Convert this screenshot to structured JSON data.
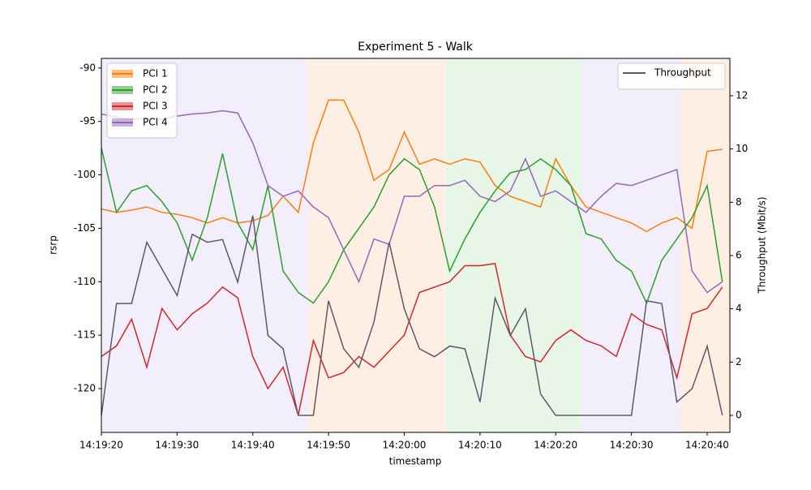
{
  "chart_data": {
    "type": "line",
    "title": "Experiment 5 - Walk",
    "x_label": "timestamp",
    "y_label": "rsrp",
    "y2_label": "Throughput (Mbit/s)",
    "x": [
      "14:19:20",
      "14:19:22",
      "14:19:24",
      "14:19:26",
      "14:19:28",
      "14:19:30",
      "14:19:32",
      "14:19:34",
      "14:19:36",
      "14:19:38",
      "14:19:40",
      "14:19:42",
      "14:19:44",
      "14:19:46",
      "14:19:48",
      "14:19:50",
      "14:19:52",
      "14:19:54",
      "14:19:56",
      "14:19:58",
      "14:20:00",
      "14:20:02",
      "14:20:04",
      "14:20:06",
      "14:20:08",
      "14:20:10",
      "14:20:12",
      "14:20:14",
      "14:20:16",
      "14:20:18",
      "14:20:20",
      "14:20:22",
      "14:20:24",
      "14:20:26",
      "14:20:28",
      "14:20:30",
      "14:20:32",
      "14:20:34",
      "14:20:36",
      "14:20:38",
      "14:20:40",
      "14:20:42"
    ],
    "xlim": [
      "14:19:20",
      "14:20:43"
    ],
    "xticks": [
      "14:19:20",
      "14:19:30",
      "14:19:40",
      "14:19:50",
      "14:20:00",
      "14:20:10",
      "14:20:20",
      "14:20:30",
      "14:20:40"
    ],
    "ylim": [
      -124.1,
      -89.1
    ],
    "yticks": [
      -90,
      -95,
      -100,
      -105,
      -110,
      -115,
      -120
    ],
    "y2lim": [
      -0.64,
      13.4
    ],
    "y2ticks": [
      0,
      2,
      4,
      6,
      8,
      10,
      12
    ],
    "regions": [
      {
        "start": "14:19:20",
        "end": "14:19:47.3",
        "color": "#f2eefb"
      },
      {
        "start": "14:19:47.3",
        "end": "14:20:05.4",
        "color": "#fdefe3"
      },
      {
        "start": "14:20:05.4",
        "end": "14:20:23.4",
        "color": "#e7f6e7"
      },
      {
        "start": "14:20:23.4",
        "end": "14:20:36.5",
        "color": "#f2eefb"
      },
      {
        "start": "14:20:36.5",
        "end": "14:20:43",
        "color": "#fdefe3"
      }
    ],
    "series": [
      {
        "name": "PCI 1",
        "color": "#ff7f0e",
        "values": [
          -103.2,
          -103.5,
          -103.3,
          -103,
          -103.5,
          -103.7,
          -104,
          -104.5,
          -104,
          -104.5,
          -104.3,
          -103.8,
          -102,
          -103.5,
          -97,
          -93,
          -93,
          -96,
          -100.5,
          -99.5,
          -96,
          -99,
          -98.5,
          -99,
          -98.5,
          -98.8,
          -101,
          -102,
          -102.5,
          -103,
          -98.5,
          -101,
          -103,
          -103.5,
          -104,
          -104.5,
          -105.3,
          -104.5,
          -104,
          -105,
          -97.8,
          -97.6
        ]
      },
      {
        "name": "PCI 2",
        "color": "#2ca02c",
        "values": [
          -97.5,
          -103.5,
          -101.5,
          -101,
          -102.5,
          -104.5,
          -108,
          -104,
          -98,
          -104.5,
          -107,
          -101,
          -109,
          -111,
          -112,
          -110,
          -107,
          -105,
          -103,
          -100,
          -98.5,
          -99.5,
          -103,
          -109,
          -106,
          -103.5,
          -101.5,
          -99.8,
          -99.5,
          -98.5,
          -99.5,
          -101,
          -105.5,
          -106,
          -108,
          -109,
          -112,
          -108,
          -106,
          -104,
          -101,
          -110
        ]
      },
      {
        "name": "PCI 3",
        "color": "#d62728",
        "values": [
          -117,
          -116,
          -113.5,
          -118,
          -112.5,
          -114.5,
          -113,
          -112,
          -110.5,
          -111.5,
          -117,
          -120,
          -118,
          -122.5,
          -115.5,
          -119,
          -118.5,
          -117,
          -118,
          -116.5,
          -115,
          -111,
          -110.5,
          -110,
          -108.5,
          -108.5,
          -108.3,
          -115,
          -117,
          -117.5,
          -115.5,
          -114.5,
          -115.5,
          -116,
          -117,
          -113,
          -114,
          -114.5,
          -119,
          -113,
          -112.5,
          -110.5
        ]
      },
      {
        "name": "PCI 4",
        "color": "#9467bd",
        "values": [
          -94.3,
          -94.6,
          -94.8,
          -94.7,
          -94.8,
          -94.5,
          -94.3,
          -94.2,
          -94,
          -94.2,
          -97,
          -101,
          -102,
          -101.5,
          -103,
          -104,
          -107,
          -110,
          -106,
          -106.5,
          -102,
          -102,
          -101,
          -101,
          -100.5,
          -102,
          -102.5,
          -101.5,
          -98.5,
          -102,
          -101.5,
          -102.5,
          -103.5,
          -102,
          -100.8,
          -101,
          -100.5,
          -100,
          -99.5,
          -109,
          -111,
          -110
        ]
      },
      {
        "name": "Throughput",
        "color": "#5f5866",
        "axis": "y2",
        "values": [
          0,
          4.2,
          4.2,
          6.5,
          5.5,
          4.5,
          6.8,
          6.5,
          6.6,
          5,
          7.5,
          3,
          2.5,
          0,
          0,
          4.3,
          2.5,
          1.8,
          3.5,
          6.5,
          4,
          2.5,
          2.2,
          2.6,
          2.5,
          0.5,
          4.4,
          3,
          4,
          0.8,
          0,
          0,
          0,
          0,
          0,
          0,
          4.3,
          4.2,
          0.5,
          1,
          2.6,
          0
        ]
      }
    ]
  }
}
